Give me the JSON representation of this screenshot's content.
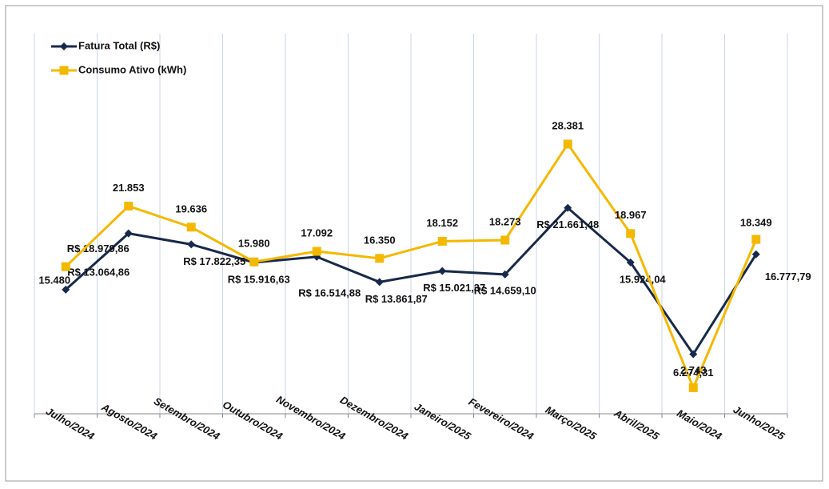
{
  "chart_data": {
    "type": "line",
    "categories": [
      "Julho/2024",
      "Agosto/2024",
      "Setembro/2024",
      "Outubro/2024",
      "Novembro/2024",
      "Dezembro/2024",
      "Janeiro/2025",
      "Fevereiro/2024",
      "Março/2025",
      "Abril/2025",
      "Maio/2024",
      "Junho/2025"
    ],
    "series": [
      {
        "name": "Fatura Total (R$)",
        "color": "#17294a",
        "marker": "diamond",
        "values": [
          13064.86,
          18979.86,
          17822.35,
          15916.63,
          16514.88,
          13861.87,
          15021.37,
          14659.1,
          21661.48,
          15924.04,
          6274.31,
          16777.79
        ],
        "value_labels": [
          "R$ 13.064,86",
          "R$ 18.979,86",
          "R$ 17.822,35",
          "R$ 15.916,63",
          "R$ 16.514,88",
          "R$ 13.861,87",
          "R$ 15.021,37",
          "R$ 14.659,10",
          "R$ 21.661,48",
          "15.924,04",
          "6.274,31",
          "16.777,79"
        ]
      },
      {
        "name": "Consumo Ativo (kWh)",
        "color": "#f5b800",
        "marker": "square",
        "values": [
          15480,
          21853,
          19636,
          15980,
          17092,
          16350,
          18152,
          18273,
          28381,
          18967,
          2743,
          18349
        ],
        "value_labels": [
          "15.480",
          "21.853",
          "19.636",
          "15.980",
          "17.092",
          "16.350",
          "18.152",
          "18.273",
          "28.381",
          "18.967",
          "2.743",
          "18.349"
        ]
      }
    ],
    "ylim": [
      0,
      40000
    ],
    "grid": true,
    "legend": "top-left"
  }
}
